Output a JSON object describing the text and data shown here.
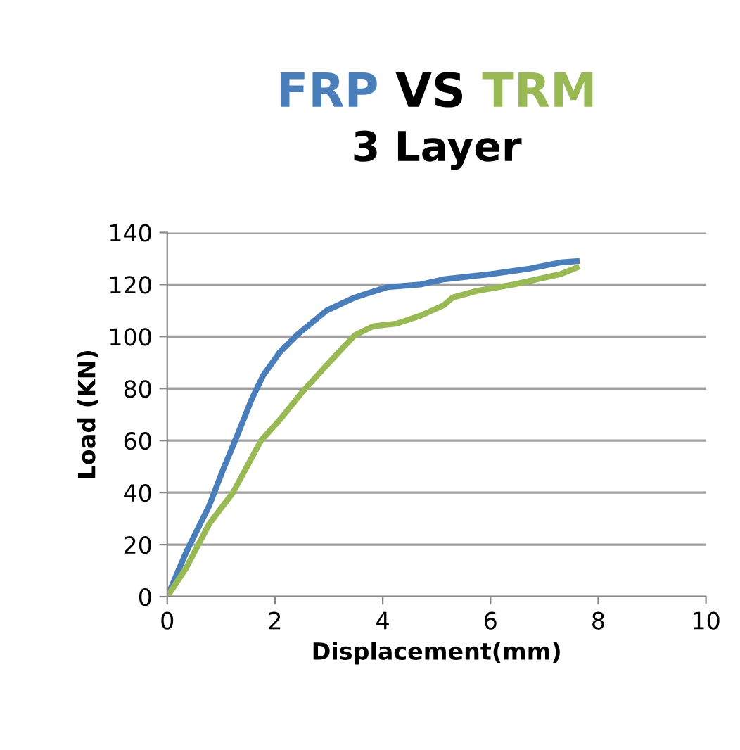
{
  "chart_data": {
    "type": "line",
    "title": "FRP VS TRM",
    "subtitle": "3 Layer",
    "xlabel": "Displacement(mm)",
    "ylabel": "Load (KN)",
    "xlim": [
      0,
      10
    ],
    "xticks": [
      0,
      2,
      4,
      6,
      8,
      10
    ],
    "ylim": [
      0,
      140
    ],
    "yticks": [
      0,
      20,
      40,
      60,
      80,
      100,
      120,
      140
    ],
    "grid": "y",
    "legend": false,
    "marker": "none",
    "line_style": "solid",
    "series": [
      {
        "color": "#4a7ebb",
        "x": [
          0,
          0.35,
          0.78,
          1.04,
          1.3,
          1.57,
          1.78,
          2.09,
          2.43,
          2.96,
          3.48,
          4.09,
          4.7,
          5.13,
          6.0,
          6.7,
          7.3,
          7.6
        ],
        "values": [
          0,
          17,
          35,
          49,
          62,
          76,
          85,
          94,
          101,
          110,
          115,
          119,
          120,
          122,
          124,
          126,
          128.5,
          129
        ]
      },
      {
        "color": "#98b954",
        "x": [
          0,
          0.35,
          0.78,
          1.22,
          1.74,
          2.09,
          2.52,
          2.96,
          3.48,
          3.83,
          4.26,
          4.7,
          5.13,
          5.3,
          5.74,
          6.43,
          7.3,
          7.6
        ],
        "values": [
          0,
          11,
          28,
          40,
          60,
          68,
          79,
          89,
          100.5,
          104,
          105,
          108,
          112,
          115,
          117.5,
          120,
          124,
          126.5
        ]
      }
    ]
  }
}
